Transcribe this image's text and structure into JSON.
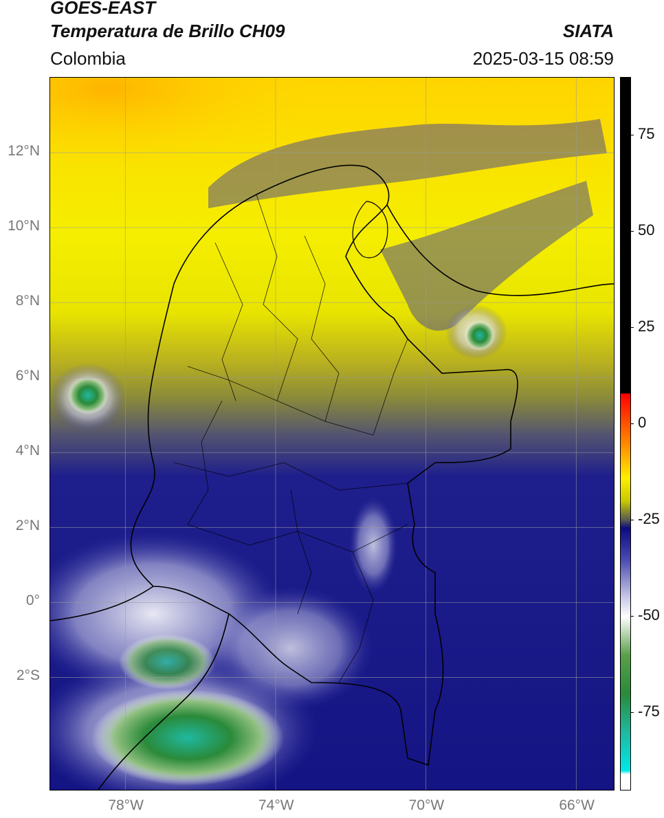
{
  "header": {
    "title_line1": "GOES-EAST",
    "title_line2": "Temperatura de Brillo CH09",
    "region": "Colombia",
    "brand": "SIATA",
    "timestamp": "2025-03-15 08:59"
  },
  "map": {
    "extent_lon": [
      -80,
      -65
    ],
    "extent_lat": [
      -5,
      14
    ],
    "graticule": true,
    "lat_labels": [
      "12°N",
      "10°N",
      "8°N",
      "6°N",
      "4°N",
      "2°N",
      "0°",
      "2°S"
    ],
    "lat_values": [
      12,
      10,
      8,
      6,
      4,
      2,
      0,
      -2
    ],
    "lon_labels": [
      "78°W",
      "74°W",
      "70°W",
      "66°W"
    ],
    "lon_values": [
      -78,
      -74,
      -70,
      -66
    ],
    "colors": {
      "warm_yellow": "#f7ee00",
      "warm_orange": "#ffb000",
      "mid_olive": "#8a8a3a",
      "cold_navy": "#1a1a8c",
      "very_cold_white": "#f0f0f8",
      "coldest_green": "#3c8c3c",
      "coldest_teal": "#2bb59a"
    }
  },
  "colorbar": {
    "tick_labels": [
      "75",
      "50",
      "25",
      "0",
      "-25",
      "-50",
      "-75"
    ],
    "tick_values": [
      75,
      50,
      25,
      0,
      -25,
      -50,
      -75
    ],
    "range": [
      -95,
      90
    ],
    "stops": [
      {
        "value": 90,
        "color": "#000000"
      },
      {
        "value": 8,
        "color": "#000000"
      },
      {
        "value": 7.9,
        "color": "#ff0000"
      },
      {
        "value": -5,
        "color": "#ff8800"
      },
      {
        "value": -14,
        "color": "#ffee00"
      },
      {
        "value": -20,
        "color": "#c8c800"
      },
      {
        "value": -25,
        "color": "#555555"
      },
      {
        "value": -27,
        "color": "#0c0c80"
      },
      {
        "value": -35,
        "color": "#4848b0"
      },
      {
        "value": -45,
        "color": "#c8c8e8"
      },
      {
        "value": -50,
        "color": "#ffffff"
      },
      {
        "value": -60,
        "color": "#5aa04a"
      },
      {
        "value": -70,
        "color": "#2a8a3a"
      },
      {
        "value": -80,
        "color": "#20b8a0"
      },
      {
        "value": -90,
        "color": "#00e8e8"
      },
      {
        "value": -91,
        "color": "#ffffff"
      },
      {
        "value": -95,
        "color": "#ffffff"
      }
    ]
  }
}
